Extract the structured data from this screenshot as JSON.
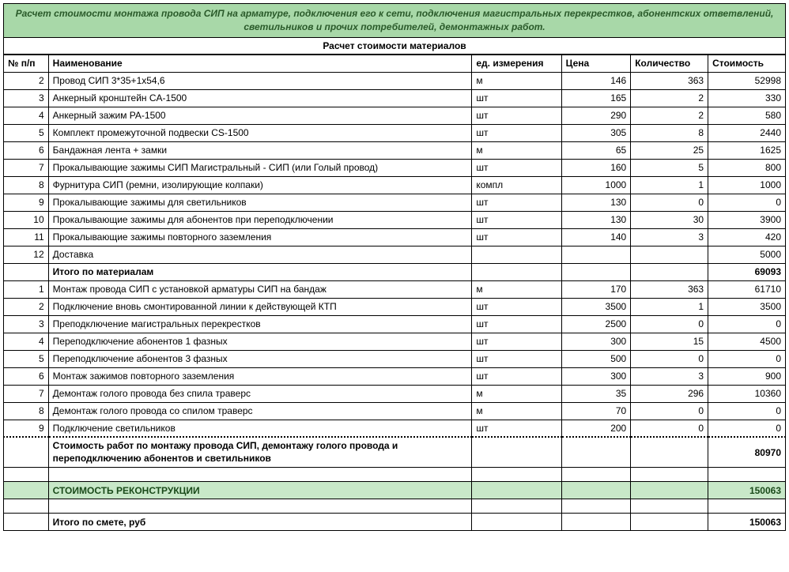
{
  "title": "Расчет стоимости монтажа провода СИП на арматуре, подключения его к сети, подключения магистральных перекрестков, абонентских ответвлений, светильников и прочих потребителей, демонтажных работ.",
  "subtitle": "Расчет стоимости материалов",
  "columns": {
    "num": "№ п/п",
    "name": "Наименование",
    "unit": "ед. измерения",
    "price": "Цена",
    "qty": "Количество",
    "cost": "Стоимость"
  },
  "materials": [
    {
      "num": "2",
      "name": "Провод СИП 3*35+1x54,6",
      "unit": "м",
      "price": "146",
      "qty": "363",
      "cost": "52998"
    },
    {
      "num": "3",
      "name": "Анкерный кронштейн CA-1500",
      "unit": "шт",
      "price": "165",
      "qty": "2",
      "cost": "330"
    },
    {
      "num": "4",
      "name": "Анкерный зажим PA-1500",
      "unit": "шт",
      "price": "290",
      "qty": "2",
      "cost": "580"
    },
    {
      "num": "5",
      "name": "Комплект промежуточной подвески CS-1500",
      "unit": "шт",
      "price": "305",
      "qty": "8",
      "cost": "2440"
    },
    {
      "num": "6",
      "name": "Бандажная лента + замки",
      "unit": "м",
      "price": "65",
      "qty": "25",
      "cost": "1625"
    },
    {
      "num": "7",
      "name": "Прокалывающие зажимы СИП Магистральный - СИП (или Голый провод)",
      "unit": "шт",
      "price": "160",
      "qty": "5",
      "cost": "800"
    },
    {
      "num": "8",
      "name": "Фурнитура СИП (ремни, изолирующие колпаки)",
      "unit": "компл",
      "price": "1000",
      "qty": "1",
      "cost": "1000"
    },
    {
      "num": "9",
      "name": "Прокалывающие зажимы для светильников",
      "unit": "шт",
      "price": "130",
      "qty": "0",
      "cost": "0"
    },
    {
      "num": "10",
      "name": "Прокалывающие зажимы для абонентов при переподключении",
      "unit": "шт",
      "price": "130",
      "qty": "30",
      "cost": "3900"
    },
    {
      "num": "11",
      "name": "Прокалывающие зажимы повторного заземления",
      "unit": "шт",
      "price": "140",
      "qty": "3",
      "cost": "420"
    },
    {
      "num": "12",
      "name": "Доставка",
      "unit": "",
      "price": "",
      "qty": "",
      "cost": "5000"
    }
  ],
  "materials_subtotal": {
    "label": "Итого по материалам",
    "cost": "69093"
  },
  "works": [
    {
      "num": "1",
      "name": "Монтаж провода СИП с установкой арматуры СИП на бандаж",
      "unit": "м",
      "price": "170",
      "qty": "363",
      "cost": "61710"
    },
    {
      "num": "2",
      "name": "Подключение вновь смонтированной линии к действующей КТП",
      "unit": "шт",
      "price": "3500",
      "qty": "1",
      "cost": "3500"
    },
    {
      "num": "3",
      "name": "Преподключение магистральных перекрестков",
      "unit": "шт",
      "price": "2500",
      "qty": "0",
      "cost": "0"
    },
    {
      "num": "4",
      "name": "Переподключение абонентов 1 фазных",
      "unit": "шт",
      "price": "300",
      "qty": "15",
      "cost": "4500"
    },
    {
      "num": "5",
      "name": "Переподключение абонентов 3 фазных",
      "unit": "шт",
      "price": "500",
      "qty": "0",
      "cost": "0"
    },
    {
      "num": "6",
      "name": "Монтаж зажимов повторного заземления",
      "unit": "шт",
      "price": "300",
      "qty": "3",
      "cost": "900"
    },
    {
      "num": "7",
      "name": "Демонтаж голого провода без спила траверс",
      "unit": "м",
      "price": "35",
      "qty": "296",
      "cost": "10360"
    },
    {
      "num": "8",
      "name": "Демонтаж голого провода со спилом траверс",
      "unit": "м",
      "price": "70",
      "qty": "0",
      "cost": "0"
    },
    {
      "num": "9",
      "name": "Подключение светильников",
      "unit": "шт",
      "price": "200",
      "qty": "0",
      "cost": "0"
    }
  ],
  "works_subtotal": {
    "label": "Стоимость работ по монтажу провода СИП, демонтажу голого провода и переподключению абонентов и светильников",
    "cost": "80970"
  },
  "grand": {
    "label": "СТОИМОСТЬ РЕКОНСТРУКЦИИ",
    "cost": "150063"
  },
  "final": {
    "label": "Итого по смете, руб",
    "cost": "150063"
  },
  "colors": {
    "header_bg": "#a8d8a8",
    "grand_bg": "#c8e8c8",
    "title_text": "#2a5a2a"
  }
}
